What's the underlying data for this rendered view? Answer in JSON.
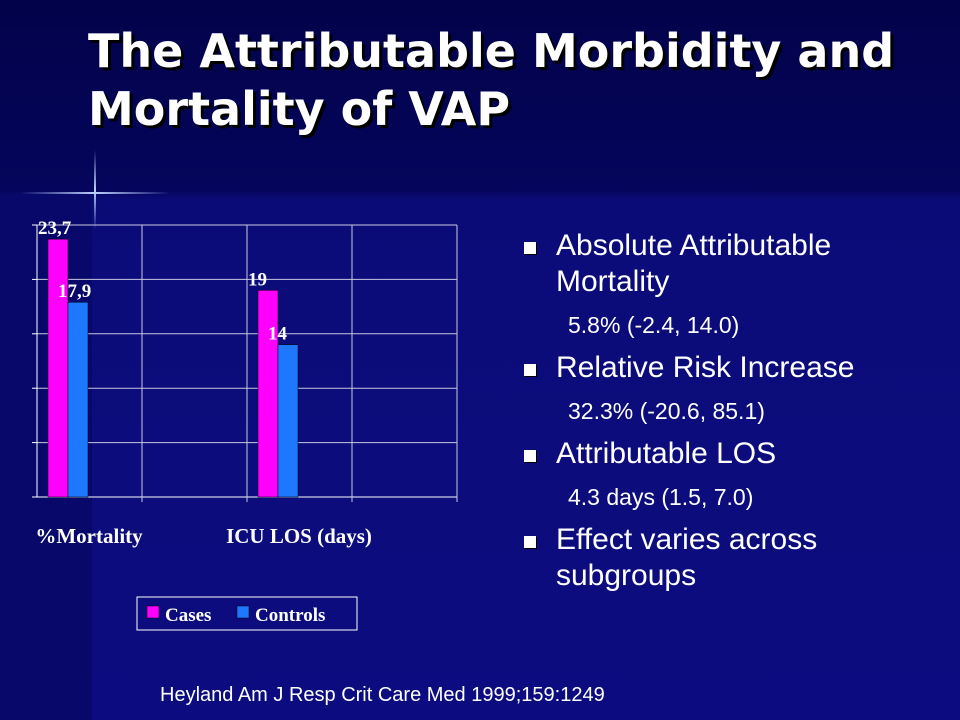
{
  "title": "The Attributable Morbidity and Mortality of VAP",
  "bullets": [
    {
      "text": "Absolute Attributable Mortality",
      "sub": "5.8% (-2.4, 14.0)"
    },
    {
      "text": "Relative Risk Increase",
      "sub": "32.3% (-20.6, 85.1)"
    },
    {
      "text": "Attributable LOS",
      "sub": "4.3 days (1.5, 7.0)"
    },
    {
      "text": "Effect varies across subgroups"
    }
  ],
  "footer": "Heyland Am J Resp Crit Care Med 1999;159:1249",
  "chart_data": {
    "type": "bar",
    "categories": [
      "%Mortality",
      "ICU LOS (days)"
    ],
    "series": [
      {
        "name": "Cases",
        "color": "#ff00ff",
        "values": [
          23.7,
          19
        ],
        "value_labels": [
          "23,7",
          "19"
        ]
      },
      {
        "name": "Controls",
        "color": "#1e78ff",
        "values": [
          17.9,
          14
        ],
        "value_labels": [
          "17,9",
          "14"
        ]
      }
    ],
    "ylim": [
      0,
      25
    ],
    "yticks": [
      0,
      5,
      10,
      15,
      20,
      25
    ],
    "grid": true
  }
}
